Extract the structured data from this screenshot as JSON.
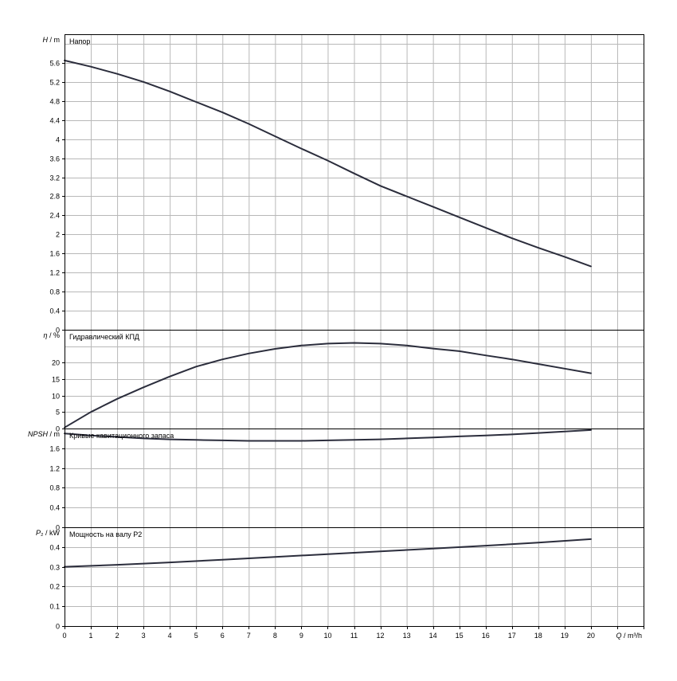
{
  "colors": {
    "curve": "#2b2d3c",
    "grid": "#b8b8b8",
    "frame": "#000000",
    "background": "#ffffff"
  },
  "chart_data": [
    {
      "type": "line",
      "panel": "head",
      "title": "Напор",
      "ylabel": "H / m",
      "ylabel_html": [
        "H",
        " / m"
      ],
      "xlim": [
        0,
        22
      ],
      "ylim": [
        0,
        6.2
      ],
      "yticks": [
        0,
        0.4,
        0.8,
        1.2,
        1.6,
        2,
        2.4,
        2.8,
        3.2,
        3.6,
        4,
        4.4,
        4.8,
        5.2,
        5.6
      ],
      "grid": true,
      "series": [
        {
          "x": [
            0,
            1,
            2,
            3,
            4,
            5,
            6,
            7,
            8,
            9,
            10,
            11,
            12,
            13,
            14,
            15,
            16,
            17,
            18,
            19,
            20
          ],
          "y": [
            5.65,
            5.52,
            5.37,
            5.2,
            5.0,
            4.78,
            4.56,
            4.32,
            4.06,
            3.8,
            3.55,
            3.28,
            3.02,
            2.8,
            2.58,
            2.36,
            2.14,
            1.92,
            1.72,
            1.53,
            1.33
          ]
        }
      ]
    },
    {
      "type": "line",
      "panel": "efficiency",
      "title": "Гидравлический КПД",
      "ylabel": "η / %",
      "ylabel_html": [
        "η",
        " / %"
      ],
      "xlim": [
        0,
        22
      ],
      "ylim": [
        0,
        30
      ],
      "yticks": [
        0,
        5,
        10,
        15,
        20
      ],
      "grid": true,
      "series": [
        {
          "x": [
            0,
            1,
            2,
            3,
            4,
            5,
            6,
            7,
            8,
            9,
            10,
            11,
            12,
            13,
            14,
            15,
            16,
            17,
            18,
            19,
            20
          ],
          "y": [
            0.3,
            5.0,
            9.0,
            12.5,
            15.8,
            18.8,
            21.0,
            22.8,
            24.2,
            25.2,
            25.8,
            26.0,
            25.8,
            25.2,
            24.3,
            23.5,
            22.2,
            21.0,
            19.6,
            18.2,
            16.8
          ]
        }
      ]
    },
    {
      "type": "line",
      "panel": "npsh",
      "title": "Кривые кавитационного запаса",
      "ylabel": "NPSH / m",
      "ylabel_html": [
        "NPSH",
        " / m"
      ],
      "xlim": [
        0,
        22
      ],
      "ylim": [
        0,
        2.0
      ],
      "yticks": [
        0,
        0.4,
        0.8,
        1.2,
        1.6
      ],
      "grid": true,
      "series": [
        {
          "x": [
            0,
            1,
            2,
            3,
            4,
            5,
            6,
            7,
            8,
            9,
            10,
            11,
            12,
            13,
            14,
            15,
            16,
            17,
            18,
            19,
            20
          ],
          "y": [
            1.9,
            1.86,
            1.83,
            1.8,
            1.78,
            1.77,
            1.76,
            1.75,
            1.75,
            1.75,
            1.76,
            1.77,
            1.78,
            1.8,
            1.82,
            1.84,
            1.86,
            1.88,
            1.91,
            1.94,
            1.97
          ]
        }
      ]
    },
    {
      "type": "line",
      "panel": "power",
      "title": "Мощность на валу P2",
      "ylabel": "P₂ / kW",
      "ylabel_html": [
        "P",
        "₂",
        " / kW"
      ],
      "xlabel": "Q / m³/h",
      "xlabel_html": [
        "Q",
        " / m³/h"
      ],
      "xlim": [
        0,
        22
      ],
      "xticks": [
        0,
        1,
        2,
        3,
        4,
        5,
        6,
        7,
        8,
        9,
        10,
        11,
        12,
        13,
        14,
        15,
        16,
        17,
        18,
        19,
        20
      ],
      "ylim": [
        0,
        0.5
      ],
      "yticks": [
        0,
        0.1,
        0.2,
        0.3,
        0.4
      ],
      "ytick_labels": [
        "0",
        "0.1",
        "0.2",
        "0.3",
        "0.4"
      ],
      "grid": true,
      "series": [
        {
          "x": [
            0,
            2,
            4,
            6,
            8,
            10,
            12,
            14,
            16,
            18,
            20
          ],
          "y": [
            0.3,
            0.31,
            0.322,
            0.336,
            0.35,
            0.364,
            0.378,
            0.392,
            0.407,
            0.422,
            0.44
          ]
        }
      ]
    }
  ]
}
